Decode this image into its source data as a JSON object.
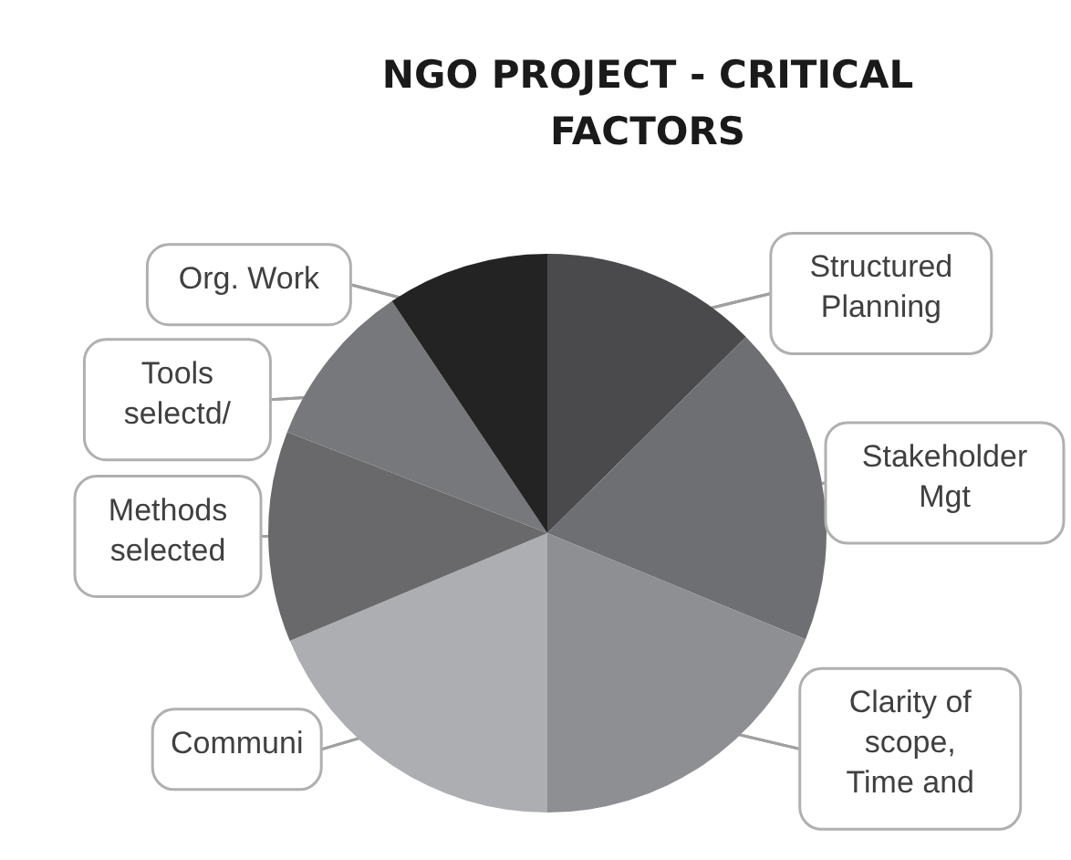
{
  "chart_data": {
    "type": "pie",
    "title": "NGO PROJECT - CRITICAL FACTORS",
    "categories": [
      "Structured Planning",
      "Stakeholder Mgt",
      "Clarity of scope, Time and",
      "Communi",
      "Methods selected",
      "Tools selectd/",
      "Org. Work"
    ],
    "values": [
      12.6,
      18.6,
      18.8,
      18.7,
      12.2,
      9.7,
      9.4
    ],
    "colors": [
      "#4a4a4c",
      "#6e6f72",
      "#8e8f92",
      "#adaeb1",
      "#69696c",
      "#77787b",
      "#232323"
    ]
  }
}
